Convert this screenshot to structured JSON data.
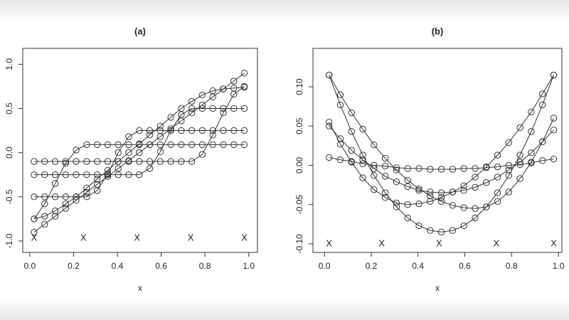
{
  "chart_data": [
    {
      "type": "line",
      "title": "(a)",
      "xlabel": "x",
      "marker": "circle",
      "x": [
        0.02,
        0.068,
        0.116,
        0.164,
        0.212,
        0.26,
        0.308,
        0.356,
        0.404,
        0.452,
        0.5,
        0.548,
        0.596,
        0.644,
        0.692,
        0.74,
        0.788,
        0.836,
        0.884,
        0.932,
        0.98
      ],
      "series": [
        {
          "color": "#333333",
          "values": [
            -0.9,
            -0.81,
            -0.72,
            -0.63,
            -0.54,
            -0.45,
            -0.36,
            -0.27,
            -0.18,
            -0.09,
            0,
            0.09,
            0.18,
            0.27,
            0.36,
            0.45,
            0.54,
            0.63,
            0.72,
            0.81,
            0.9
          ]
        },
        {
          "color": "#333333",
          "values": [
            -0.75,
            -0.58,
            -0.35,
            -0.12,
            0.03,
            0.09,
            0.09,
            0.09,
            0.09,
            0.09,
            0.09,
            0.09,
            0.09,
            0.09,
            0.09,
            0.09,
            0.09,
            0.09,
            0.09,
            0.09,
            0.09
          ]
        },
        {
          "color": "#333333",
          "values": [
            -0.5,
            -0.5,
            -0.5,
            -0.5,
            -0.5,
            -0.5,
            -0.43,
            -0.24,
            0,
            0.18,
            0.25,
            0.25,
            0.25,
            0.25,
            0.25,
            0.25,
            0.25,
            0.25,
            0.25,
            0.25,
            0.25
          ]
        },
        {
          "color": "#333333",
          "values": [
            -0.25,
            -0.25,
            -0.25,
            -0.25,
            -0.25,
            -0.25,
            -0.25,
            -0.25,
            -0.25,
            -0.25,
            -0.25,
            -0.18,
            0.01,
            0.25,
            0.43,
            0.5,
            0.5,
            0.5,
            0.5,
            0.5,
            0.5
          ]
        },
        {
          "color": "#333333",
          "values": [
            -0.1,
            -0.1,
            -0.1,
            -0.1,
            -0.1,
            -0.1,
            -0.1,
            -0.1,
            -0.1,
            -0.1,
            -0.1,
            -0.1,
            -0.1,
            -0.1,
            -0.1,
            -0.1,
            -0.02,
            0.2,
            0.45,
            0.66,
            0.75
          ]
        },
        {
          "color": "#333333",
          "values": [
            -0.75,
            -0.72,
            -0.66,
            -0.58,
            -0.5,
            -0.4,
            -0.3,
            -0.2,
            -0.1,
            0,
            0.1,
            0.2,
            0.3,
            0.4,
            0.5,
            0.58,
            0.65,
            0.7,
            0.72,
            0.73,
            0.74
          ]
        }
      ],
      "knot_label": "X",
      "knot_x": [
        0.02,
        0.245,
        0.49,
        0.735,
        0.98
      ],
      "knot_y": -0.97,
      "xlim": [
        -0.032,
        1.04
      ],
      "ylim": [
        -1.13,
        1.18
      ],
      "xticks": [
        {
          "value": 0,
          "label": "0.0"
        },
        0.2,
        0.4,
        0.6,
        0.8,
        {
          "value": 1,
          "label": "1.0"
        }
      ],
      "yticks": [
        {
          "value": -1,
          "label": "-1.0"
        },
        {
          "value": -0.5,
          "label": "-0.5"
        },
        {
          "value": 0,
          "label": "0.0"
        },
        0.5,
        {
          "value": 1,
          "label": "1.0"
        }
      ]
    },
    {
      "type": "line",
      "title": "(b)",
      "xlabel": "x",
      "marker": "circle",
      "x": [
        0.02,
        0.068,
        0.116,
        0.164,
        0.212,
        0.26,
        0.308,
        0.356,
        0.404,
        0.452,
        0.5,
        0.548,
        0.596,
        0.644,
        0.692,
        0.74,
        0.788,
        0.836,
        0.884,
        0.932,
        0.98
      ],
      "series": [
        {
          "color": "#333333",
          "values": [
            0.115,
            0.077,
            0.043,
            0.013,
            -0.013,
            -0.035,
            -0.053,
            -0.067,
            -0.077,
            -0.083,
            -0.085,
            -0.083,
            -0.077,
            -0.067,
            -0.053,
            -0.035,
            -0.013,
            0.013,
            0.043,
            0.077,
            0.115
          ]
        },
        {
          "color": "#333333",
          "values": [
            0.115,
            0.09,
            0.067,
            0.046,
            0.026,
            0.009,
            -0.006,
            -0.019,
            -0.03,
            -0.039,
            -0.046,
            -0.051,
            -0.054,
            -0.055,
            -0.053,
            -0.046,
            -0.034,
            -0.017,
            0.004,
            0.03,
            0.06
          ]
        },
        {
          "color": "#333333",
          "values": [
            0.055,
            0.027,
            0.004,
            -0.016,
            -0.031,
            -0.041,
            -0.048,
            -0.05,
            -0.049,
            -0.046,
            -0.041,
            -0.034,
            -0.026,
            -0.015,
            -0.002,
            0.013,
            0.029,
            0.048,
            0.068,
            0.091,
            0.115
          ]
        },
        {
          "color": "#333333",
          "values": [
            0.05,
            0.034,
            0.019,
            0.007,
            -0.004,
            -0.014,
            -0.021,
            -0.027,
            -0.032,
            -0.034,
            -0.035,
            -0.034,
            -0.032,
            -0.028,
            -0.022,
            -0.015,
            -0.006,
            0.004,
            0.016,
            0.03,
            0.045
          ]
        },
        {
          "color": "#333333",
          "values": [
            0.01,
            0.007,
            0.005,
            0.002,
            0,
            -0.001,
            -0.003,
            -0.004,
            -0.004,
            -0.005,
            -0.005,
            -0.005,
            -0.004,
            -0.004,
            -0.003,
            -0.002,
            0,
            0.001,
            0.003,
            0.006,
            0.008
          ]
        }
      ],
      "knot_label": "X",
      "knot_x": [
        0.02,
        0.245,
        0.49,
        0.735,
        0.98
      ],
      "knot_y": -0.1,
      "xlim": [
        -0.049,
        1.015
      ],
      "ylim": [
        -0.111,
        0.149
      ],
      "xticks": [
        {
          "value": 0,
          "label": "0.0"
        },
        0.2,
        0.4,
        0.6,
        0.8,
        {
          "value": 1,
          "label": "1.0"
        }
      ],
      "yticks": [
        {
          "value": -0.1,
          "label": "-0.10"
        },
        {
          "value": -0.05,
          "label": "-0.05"
        },
        {
          "value": 0,
          "label": "0.00"
        },
        0.05,
        {
          "value": 0.1,
          "label": "0.10"
        }
      ]
    }
  ]
}
